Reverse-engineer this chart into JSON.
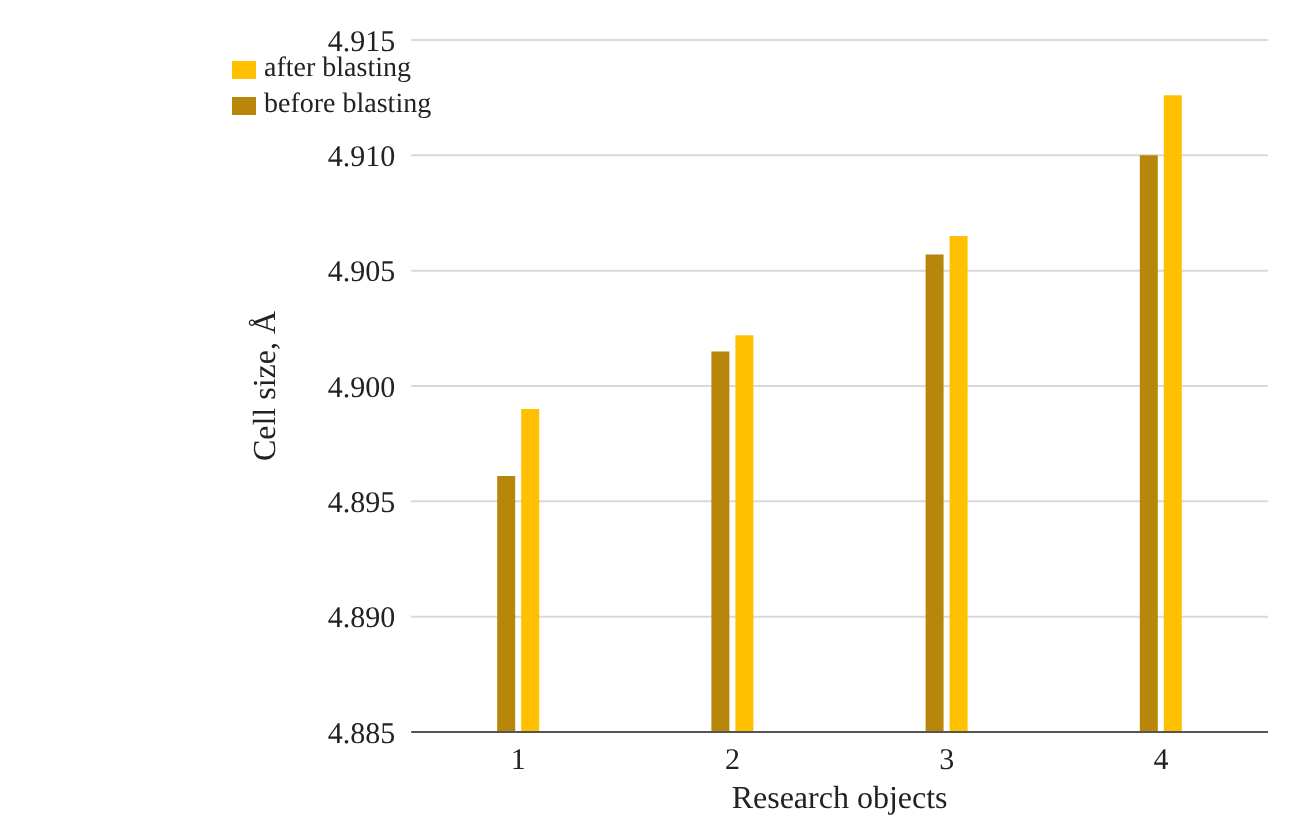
{
  "chart_data": {
    "type": "bar",
    "xlabel": "Research objects",
    "ylabel": "Cell size, Å",
    "categories": [
      "1",
      "2",
      "3",
      "4"
    ],
    "series": [
      {
        "name": "before blasting",
        "color": "#b8860b",
        "values": [
          4.8961,
          4.9015,
          4.9057,
          4.91
        ]
      },
      {
        "name": "after blasting",
        "color": "#ffc000",
        "values": [
          4.899,
          4.9022,
          4.9065,
          4.9126
        ]
      }
    ],
    "ylim": [
      4.885,
      4.915
    ],
    "yticks": [
      {
        "value": 4.885,
        "label": "4.885"
      },
      {
        "value": 4.89,
        "label": "4.890"
      },
      {
        "value": 4.895,
        "label": "4.895"
      },
      {
        "value": 4.9,
        "label": "4.900"
      },
      {
        "value": 4.905,
        "label": "4.905"
      },
      {
        "value": 4.91,
        "label": "4.910"
      },
      {
        "value": 4.915,
        "label": "4.915"
      }
    ],
    "grid": "y",
    "legend": "top left"
  }
}
